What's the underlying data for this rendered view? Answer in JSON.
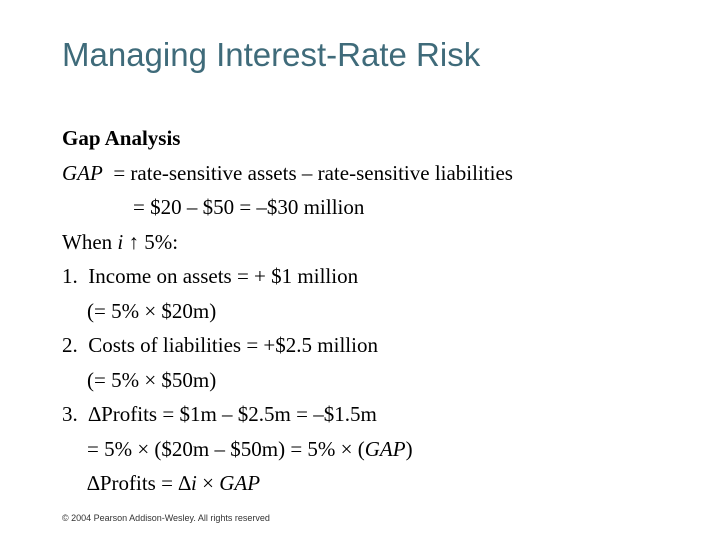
{
  "slide": {
    "title": "Managing Interest-Rate Risk",
    "footer": "© 2004 Pearson Addison-Wesley. All rights reserved"
  },
  "content": {
    "heading": "Gap Analysis",
    "gap_label": "GAP",
    "gap_def": "  = rate-sensitive assets – rate-sensitive liabilities",
    "gap_value": "= $20 – $50 = –$30 million",
    "when_prefix": "When ",
    "when_i": "i",
    "when_rest": " ↑ 5%:",
    "item1_num": "1.",
    "item1_text": "Income on assets = + $1 million",
    "item1_sub": "(= 5% × $20m)",
    "item2_num": "2.",
    "item2_text": "Costs of liabilities = +$2.5 million",
    "item2_sub": "(= 5% × $50m)",
    "item3_num": "3.",
    "item3_text": "∆Profits = $1m – $2.5m = –$1.5m",
    "item3_sub_a": "= 5% × ($20m – $50m) = 5% × (",
    "item3_sub_gap": "GAP",
    "item3_sub_b": ")",
    "item3_formula_a": "∆Profits = ∆",
    "item3_formula_i": "i",
    "item3_formula_times": " × ",
    "item3_formula_gap": "GAP"
  }
}
